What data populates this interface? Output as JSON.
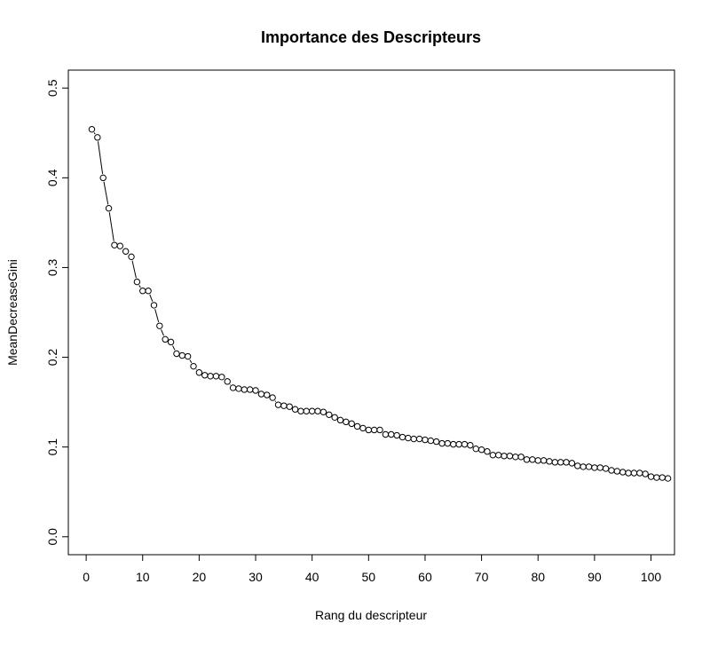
{
  "chart_data": {
    "type": "line",
    "title": "Importance des Descripteurs",
    "xlabel": "Rang du descripteur",
    "ylabel": "MeanDecreaseGini",
    "xlim": [
      -3.16,
      104.16
    ],
    "ylim": [
      -0.02,
      0.52
    ],
    "x_ticks": [
      0,
      10,
      20,
      30,
      40,
      50,
      60,
      70,
      80,
      90,
      100
    ],
    "y_ticks": [
      0.0,
      0.1,
      0.2,
      0.3,
      0.4,
      0.5
    ],
    "x_tick_labels": [
      "0",
      "10",
      "20",
      "30",
      "40",
      "50",
      "60",
      "70",
      "80",
      "90",
      "100"
    ],
    "y_tick_labels": [
      "0.0",
      "0.1",
      "0.2",
      "0.3",
      "0.4",
      "0.5"
    ],
    "grid": false,
    "marker": "open-circle",
    "line_style": "broken-line-between-points",
    "series": [
      {
        "x": [
          1,
          2,
          3,
          4,
          5,
          6,
          7,
          8,
          9,
          10,
          11,
          12,
          13,
          14,
          15,
          16,
          17,
          18,
          19,
          20,
          21,
          22,
          23,
          24,
          25,
          26,
          27,
          28,
          29,
          30,
          31,
          32,
          33,
          34,
          35,
          36,
          37,
          38,
          39,
          40,
          41,
          42,
          43,
          44,
          45,
          46,
          47,
          48,
          49,
          50,
          51,
          52,
          53,
          54,
          55,
          56,
          57,
          58,
          59,
          60,
          61,
          62,
          63,
          64,
          65,
          66,
          67,
          68,
          69,
          70,
          71,
          72,
          73,
          74,
          75,
          76,
          77,
          78,
          79,
          80,
          81,
          82,
          83,
          84,
          85,
          86,
          87,
          88,
          89,
          90,
          91,
          92,
          93,
          94,
          95,
          96,
          97,
          98,
          99,
          100,
          101,
          102,
          103
        ],
        "values": [
          0.454,
          0.445,
          0.4,
          0.366,
          0.325,
          0.324,
          0.318,
          0.312,
          0.284,
          0.274,
          0.274,
          0.258,
          0.235,
          0.22,
          0.217,
          0.204,
          0.202,
          0.201,
          0.19,
          0.183,
          0.18,
          0.179,
          0.179,
          0.178,
          0.173,
          0.166,
          0.165,
          0.164,
          0.164,
          0.163,
          0.159,
          0.158,
          0.155,
          0.147,
          0.146,
          0.145,
          0.142,
          0.14,
          0.14,
          0.14,
          0.14,
          0.139,
          0.136,
          0.133,
          0.13,
          0.128,
          0.126,
          0.123,
          0.121,
          0.119,
          0.119,
          0.119,
          0.114,
          0.114,
          0.113,
          0.111,
          0.11,
          0.109,
          0.109,
          0.108,
          0.107,
          0.106,
          0.104,
          0.104,
          0.103,
          0.103,
          0.103,
          0.102,
          0.098,
          0.097,
          0.095,
          0.091,
          0.091,
          0.09,
          0.09,
          0.089,
          0.089,
          0.086,
          0.086,
          0.085,
          0.085,
          0.084,
          0.083,
          0.083,
          0.083,
          0.082,
          0.079,
          0.078,
          0.078,
          0.077,
          0.077,
          0.076,
          0.074,
          0.073,
          0.072,
          0.071,
          0.071,
          0.071,
          0.07,
          0.067,
          0.066,
          0.066,
          0.065
        ]
      }
    ]
  }
}
